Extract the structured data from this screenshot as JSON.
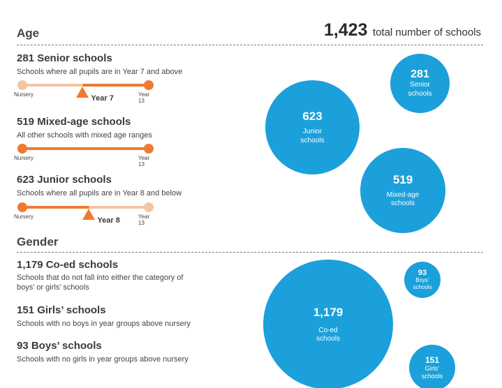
{
  "header": {
    "age_title": "Age",
    "total_number": "1,423",
    "total_label": "total number of schools",
    "gender_title": "Gender"
  },
  "age": [
    {
      "title": "281 Senior schools",
      "desc": "Schools where all pupils are in Year 7 and above",
      "start_label": "Nursery",
      "end_label": "Year 13",
      "marker_label": "Year 7",
      "marker_position": 0.48,
      "active": "right"
    },
    {
      "title": "519 Mixed-age schools",
      "desc": "All other schools with mixed age ranges",
      "start_label": "Nursery",
      "end_label": "Year 13",
      "active": "full"
    },
    {
      "title": "623 Junior schools",
      "desc": "Schools where all pupils are in Year 8 and below",
      "start_label": "Nursery",
      "end_label": "Year 13",
      "marker_label": "Year 8",
      "marker_position": 0.53,
      "active": "left"
    }
  ],
  "gender": [
    {
      "title": "1,179 Co-ed schools",
      "desc": "Schools that do not fall into either the category of boys’ or girls’ schools"
    },
    {
      "title": "151 Girls’ schools",
      "desc": "Schools with no boys in year groups above nursery"
    },
    {
      "title": "93 Boys’ schools",
      "desc": "Schools with no girls in year groups above nursery"
    }
  ],
  "colors": {
    "orange": "#ee7b30",
    "light_orange": "#f5c4a0",
    "blue": "#1ba0db"
  },
  "chart_data": [
    {
      "type": "bubble",
      "title": "Age",
      "categories": [
        "Senior schools",
        "Junior schools",
        "Mixed-age schools"
      ],
      "values": [
        281,
        623,
        519
      ],
      "value_labels": [
        "281",
        "623",
        "519"
      ],
      "labels": [
        [
          "Senior",
          "schools"
        ],
        [
          "Junior",
          "schools"
        ],
        [
          "Mixed-age",
          "schools"
        ]
      ]
    },
    {
      "type": "bubble",
      "title": "Gender",
      "categories": [
        "Boys’ schools",
        "Co-ed schools",
        "Girls’ schools"
      ],
      "values": [
        93,
        1179,
        151
      ],
      "value_labels": [
        "93",
        "1,179",
        "151"
      ],
      "labels": [
        [
          "Boys’",
          "schools"
        ],
        [
          "Co-ed",
          "schools"
        ],
        [
          "Girls’",
          "schools"
        ]
      ]
    }
  ]
}
